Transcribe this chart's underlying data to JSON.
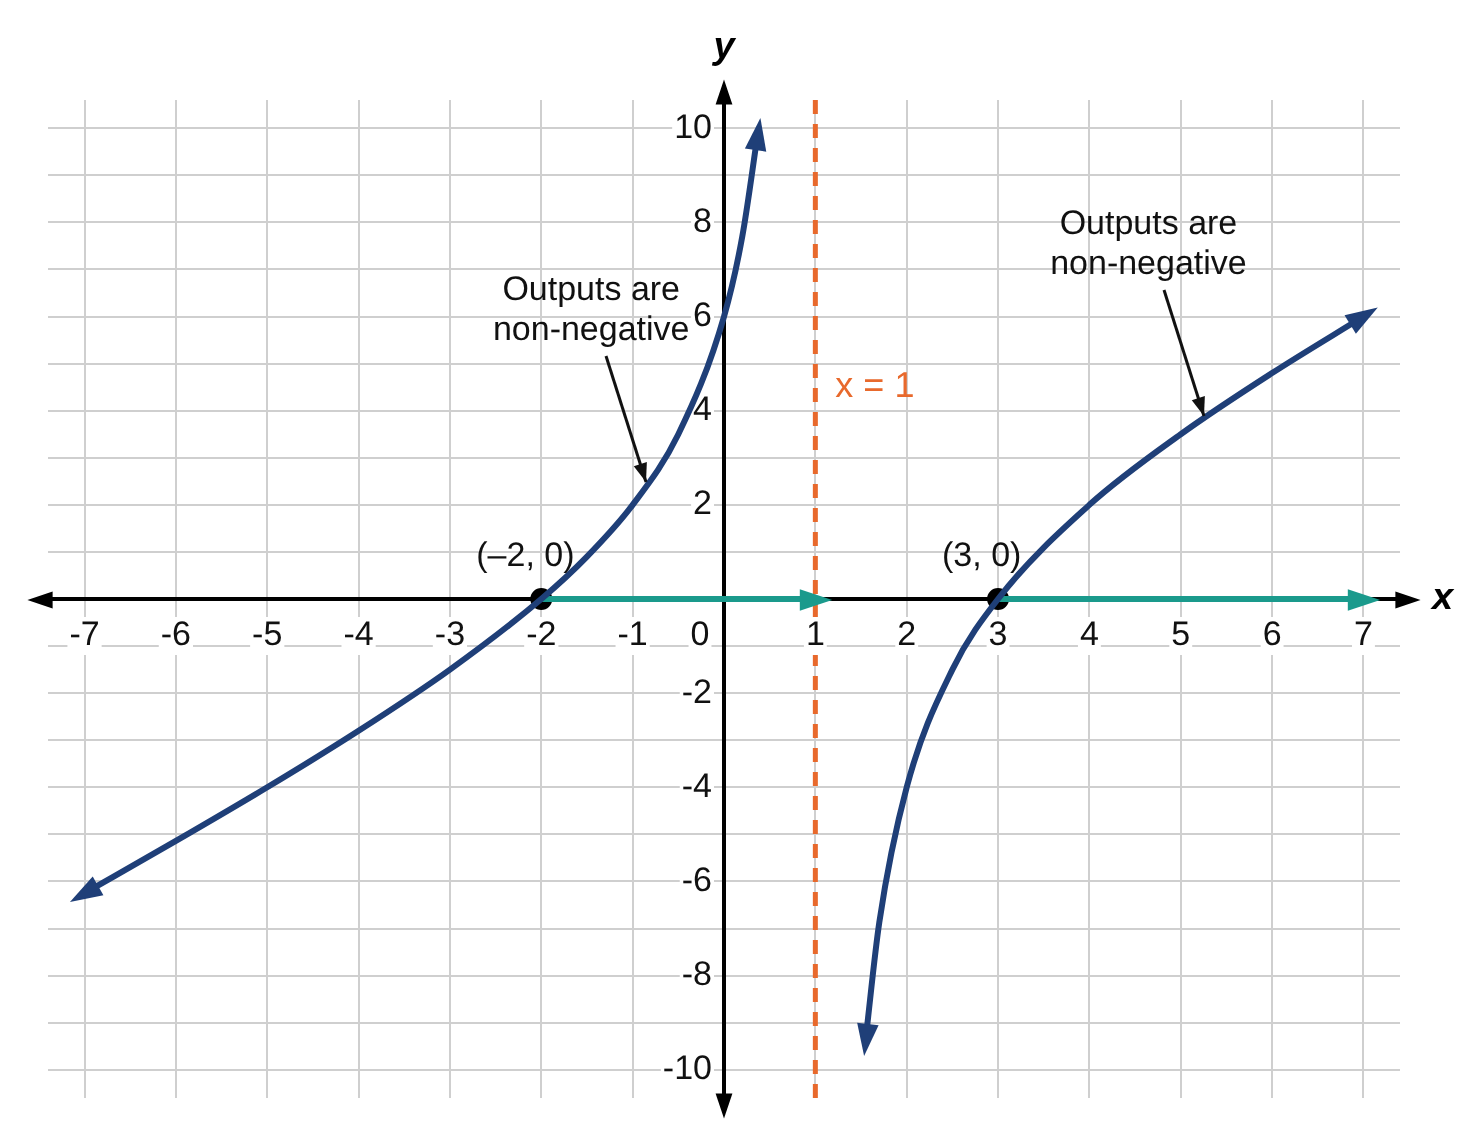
{
  "chart_data": {
    "type": "line",
    "xlabel": "x",
    "ylabel": "y",
    "xlim": [
      -7.4,
      7.4
    ],
    "ylim": [
      -10.6,
      10.6
    ],
    "xticks": [
      -7,
      -6,
      -5,
      -4,
      -3,
      -2,
      -1,
      0,
      1,
      2,
      3,
      4,
      5,
      6,
      7
    ],
    "yticks": [
      {
        "value": -10,
        "label": "-10"
      },
      {
        "value": -9,
        "label": null
      },
      {
        "value": -8,
        "label": "-8"
      },
      {
        "value": -7,
        "label": null
      },
      {
        "value": -6,
        "label": "-6"
      },
      {
        "value": -5,
        "label": null
      },
      {
        "value": -4,
        "label": "-4"
      },
      {
        "value": -3,
        "label": null
      },
      {
        "value": -2,
        "label": "-2"
      },
      {
        "value": -1,
        "label": null
      },
      {
        "value": 0,
        "label": null
      },
      {
        "value": 1,
        "label": null
      },
      {
        "value": 2,
        "label": "2"
      },
      {
        "value": 3,
        "label": null
      },
      {
        "value": 4,
        "label": "4"
      },
      {
        "value": 5,
        "label": null
      },
      {
        "value": 6,
        "label": "6"
      },
      {
        "value": 7,
        "label": null
      },
      {
        "value": 8,
        "label": "8"
      },
      {
        "value": 9,
        "label": null
      },
      {
        "value": 10,
        "label": "10"
      }
    ],
    "grid": true,
    "legend": false,
    "line_style": "solid",
    "series": [
      {
        "type": "line",
        "color": "#1f3f78",
        "x": [
          -7,
          -6,
          -5,
          -4,
          -3,
          -2,
          -1.5,
          -1,
          -0.5,
          0,
          0.2,
          0.37
        ],
        "values": [
          -6.25,
          -5.14,
          -4,
          -2.8,
          -1.5,
          0,
          0.9,
          2,
          3.5,
          6,
          7.7,
          9.89
        ]
      },
      {
        "type": "line",
        "color": "#1f3f78",
        "x": [
          1.55,
          1.7,
          2,
          2.5,
          3,
          4,
          5,
          6,
          7
        ],
        "values": [
          -9.36,
          -6.87,
          -4,
          -1.5,
          0,
          2,
          3.5,
          4.8,
          6
        ]
      },
      {
        "type": "line",
        "color": "#1a9a8c",
        "x": [
          -2,
          1
        ],
        "values": [
          0,
          0
        ]
      },
      {
        "type": "line",
        "color": "#1a9a8c",
        "x": [
          3,
          7
        ],
        "values": [
          0,
          0
        ]
      },
      {
        "type": "scatter",
        "color": "#000000",
        "marker": "circle",
        "x": [
          -2,
          3
        ],
        "values": [
          0,
          0
        ]
      }
    ],
    "ref_lines": [
      {
        "axis": "x",
        "value": 1,
        "label": "x = 1",
        "color": "#e8692c",
        "line_style": "dashed"
      }
    ],
    "annotations": [
      {
        "text": "Outputs are non-negative",
        "x": -0.8,
        "y": 2.3
      },
      {
        "text": "Outputs are non-negative",
        "x": 5.3,
        "y": 3.7
      },
      {
        "text": "(–2, 0)",
        "x": -2,
        "y": 0
      },
      {
        "text": "(3, 0)",
        "x": 3,
        "y": 0
      }
    ]
  }
}
